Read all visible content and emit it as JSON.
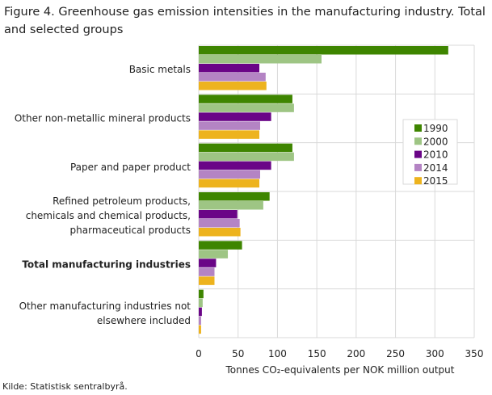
{
  "chart_data": {
    "type": "bar",
    "orientation": "horizontal",
    "title": "Figure 4. Greenhouse gas emission intensities in the manufacturing industry. Total and selected groups",
    "xlabel": "Tonnes CO₂-equivalents  per NOK million output",
    "ylabel": "",
    "xlim": [
      0,
      350
    ],
    "xticks": [
      "0",
      "50",
      "100",
      "150",
      "200",
      "250",
      "300",
      "350"
    ],
    "grid": true,
    "legend_position": "right",
    "categories": [
      [
        "Basic metals"
      ],
      [
        "Other non-metallic mineral products"
      ],
      [
        "Paper and paper product"
      ],
      [
        "Refined petroleum products,",
        "chemicals and chemical products,",
        "pharmaceutical products"
      ],
      [
        "Total manufacturing  industries"
      ],
      [
        "Other manufacturing industries not",
        "elsewhere included"
      ]
    ],
    "bold_category": 4,
    "series": [
      {
        "name": "1990",
        "color": "#3e8500",
        "values": [
          317,
          119,
          119,
          90,
          55,
          6
        ]
      },
      {
        "name": "2000",
        "color": "#9ec584",
        "values": [
          156,
          121,
          121,
          82,
          37,
          5
        ]
      },
      {
        "name": "2010",
        "color": "#6a0587",
        "values": [
          77,
          92,
          92,
          49,
          22,
          4
        ]
      },
      {
        "name": "2014",
        "color": "#b484c4",
        "values": [
          85,
          78,
          78,
          52,
          20,
          3
        ]
      },
      {
        "name": "2015",
        "color": "#edb31e",
        "values": [
          86,
          77,
          77,
          53,
          20,
          3
        ]
      }
    ]
  },
  "source": "Kilde: Statistisk sentralbyrå."
}
